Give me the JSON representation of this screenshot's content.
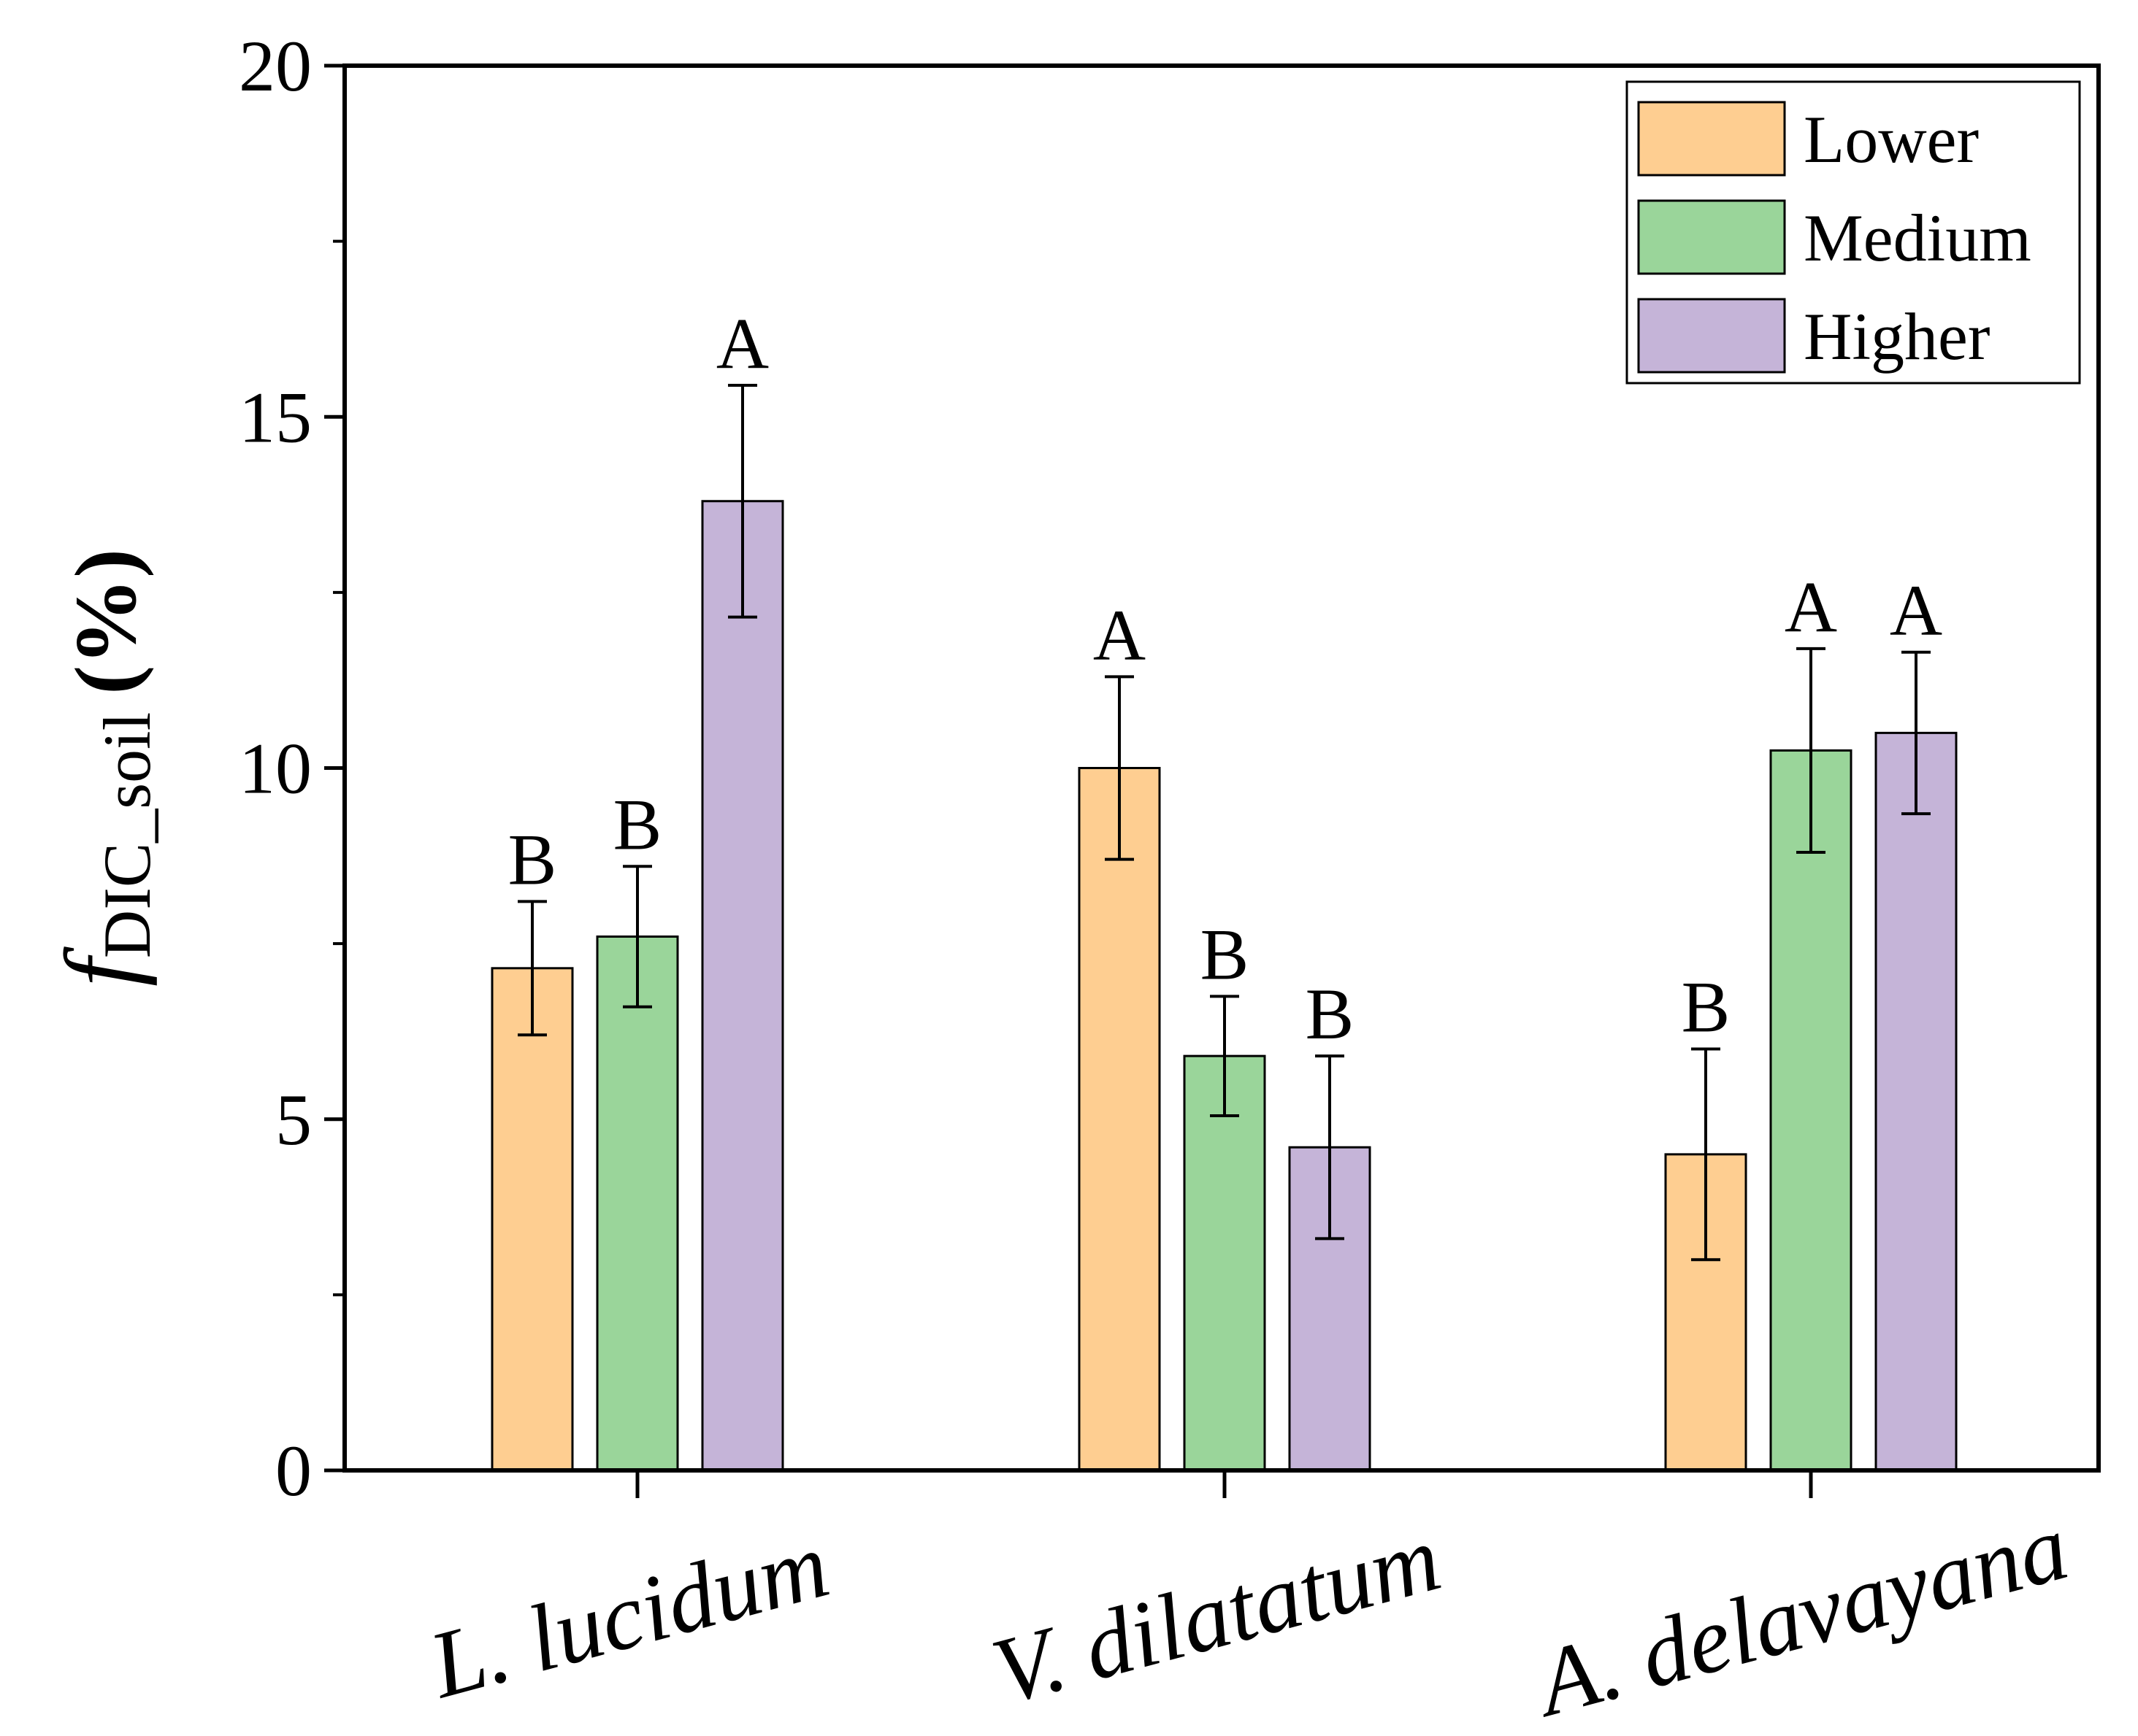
{
  "chart_data": {
    "type": "bar",
    "title": "",
    "xlabel": "",
    "ylabel": {
      "main": "f",
      "subscript": "DIC_soil",
      "unit": "(%)"
    },
    "ylim": [
      0,
      20
    ],
    "yticks": [
      0,
      5,
      10,
      15,
      20
    ],
    "categories": [
      "L. lucidum",
      "V. dilatatum",
      "A. delavayana"
    ],
    "series": [
      {
        "name": "Lower",
        "color": "#FECE91",
        "values": [
          7.15,
          10.0,
          4.5
        ],
        "errors": [
          0.95,
          1.3,
          1.5
        ],
        "significance": [
          "B",
          "A",
          "B"
        ]
      },
      {
        "name": "Medium",
        "color": "#9AD59A",
        "values": [
          7.6,
          5.9,
          10.25
        ],
        "errors": [
          1.0,
          0.85,
          1.45
        ],
        "significance": [
          "B",
          "B",
          "A"
        ]
      },
      {
        "name": "Higher",
        "color": "#C5B4D8",
        "values": [
          13.8,
          4.6,
          10.5
        ],
        "errors": [
          1.65,
          1.3,
          1.15
        ],
        "significance": [
          "A",
          "B",
          "A"
        ]
      }
    ],
    "legend": {
      "position": "top-right",
      "entries": [
        "Lower",
        "Medium",
        "Higher"
      ]
    },
    "grid": false
  }
}
